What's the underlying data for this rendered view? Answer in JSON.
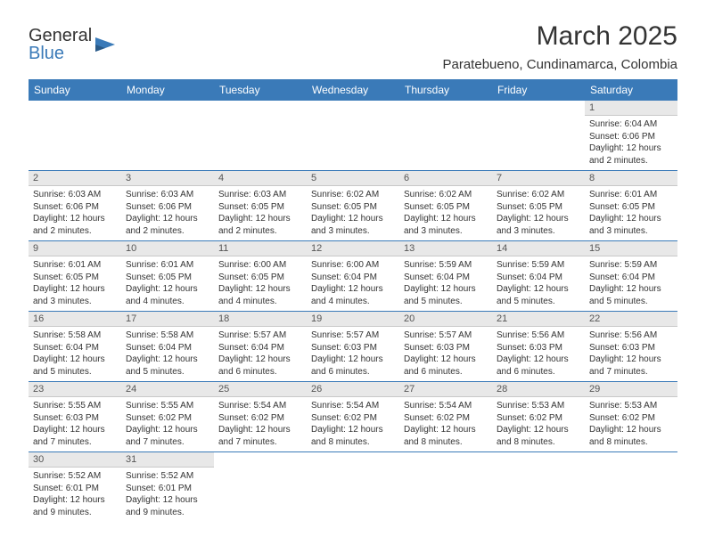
{
  "brand": {
    "part1": "General",
    "part2": "Blue"
  },
  "title": "March 2025",
  "location": "Paratebueno, Cundinamarca, Colombia",
  "colors": {
    "header_bg": "#3a7ab8",
    "header_text": "#ffffff",
    "daynum_bg": "#e8e8e8",
    "row_border": "#3a7ab8",
    "body_text": "#333333"
  },
  "weekdays": [
    "Sunday",
    "Monday",
    "Tuesday",
    "Wednesday",
    "Thursday",
    "Friday",
    "Saturday"
  ],
  "weeks": [
    [
      null,
      null,
      null,
      null,
      null,
      null,
      {
        "n": "1",
        "sr": "Sunrise: 6:04 AM",
        "ss": "Sunset: 6:06 PM",
        "dl": "Daylight: 12 hours and 2 minutes."
      }
    ],
    [
      {
        "n": "2",
        "sr": "Sunrise: 6:03 AM",
        "ss": "Sunset: 6:06 PM",
        "dl": "Daylight: 12 hours and 2 minutes."
      },
      {
        "n": "3",
        "sr": "Sunrise: 6:03 AM",
        "ss": "Sunset: 6:06 PM",
        "dl": "Daylight: 12 hours and 2 minutes."
      },
      {
        "n": "4",
        "sr": "Sunrise: 6:03 AM",
        "ss": "Sunset: 6:05 PM",
        "dl": "Daylight: 12 hours and 2 minutes."
      },
      {
        "n": "5",
        "sr": "Sunrise: 6:02 AM",
        "ss": "Sunset: 6:05 PM",
        "dl": "Daylight: 12 hours and 3 minutes."
      },
      {
        "n": "6",
        "sr": "Sunrise: 6:02 AM",
        "ss": "Sunset: 6:05 PM",
        "dl": "Daylight: 12 hours and 3 minutes."
      },
      {
        "n": "7",
        "sr": "Sunrise: 6:02 AM",
        "ss": "Sunset: 6:05 PM",
        "dl": "Daylight: 12 hours and 3 minutes."
      },
      {
        "n": "8",
        "sr": "Sunrise: 6:01 AM",
        "ss": "Sunset: 6:05 PM",
        "dl": "Daylight: 12 hours and 3 minutes."
      }
    ],
    [
      {
        "n": "9",
        "sr": "Sunrise: 6:01 AM",
        "ss": "Sunset: 6:05 PM",
        "dl": "Daylight: 12 hours and 3 minutes."
      },
      {
        "n": "10",
        "sr": "Sunrise: 6:01 AM",
        "ss": "Sunset: 6:05 PM",
        "dl": "Daylight: 12 hours and 4 minutes."
      },
      {
        "n": "11",
        "sr": "Sunrise: 6:00 AM",
        "ss": "Sunset: 6:05 PM",
        "dl": "Daylight: 12 hours and 4 minutes."
      },
      {
        "n": "12",
        "sr": "Sunrise: 6:00 AM",
        "ss": "Sunset: 6:04 PM",
        "dl": "Daylight: 12 hours and 4 minutes."
      },
      {
        "n": "13",
        "sr": "Sunrise: 5:59 AM",
        "ss": "Sunset: 6:04 PM",
        "dl": "Daylight: 12 hours and 5 minutes."
      },
      {
        "n": "14",
        "sr": "Sunrise: 5:59 AM",
        "ss": "Sunset: 6:04 PM",
        "dl": "Daylight: 12 hours and 5 minutes."
      },
      {
        "n": "15",
        "sr": "Sunrise: 5:59 AM",
        "ss": "Sunset: 6:04 PM",
        "dl": "Daylight: 12 hours and 5 minutes."
      }
    ],
    [
      {
        "n": "16",
        "sr": "Sunrise: 5:58 AM",
        "ss": "Sunset: 6:04 PM",
        "dl": "Daylight: 12 hours and 5 minutes."
      },
      {
        "n": "17",
        "sr": "Sunrise: 5:58 AM",
        "ss": "Sunset: 6:04 PM",
        "dl": "Daylight: 12 hours and 5 minutes."
      },
      {
        "n": "18",
        "sr": "Sunrise: 5:57 AM",
        "ss": "Sunset: 6:04 PM",
        "dl": "Daylight: 12 hours and 6 minutes."
      },
      {
        "n": "19",
        "sr": "Sunrise: 5:57 AM",
        "ss": "Sunset: 6:03 PM",
        "dl": "Daylight: 12 hours and 6 minutes."
      },
      {
        "n": "20",
        "sr": "Sunrise: 5:57 AM",
        "ss": "Sunset: 6:03 PM",
        "dl": "Daylight: 12 hours and 6 minutes."
      },
      {
        "n": "21",
        "sr": "Sunrise: 5:56 AM",
        "ss": "Sunset: 6:03 PM",
        "dl": "Daylight: 12 hours and 6 minutes."
      },
      {
        "n": "22",
        "sr": "Sunrise: 5:56 AM",
        "ss": "Sunset: 6:03 PM",
        "dl": "Daylight: 12 hours and 7 minutes."
      }
    ],
    [
      {
        "n": "23",
        "sr": "Sunrise: 5:55 AM",
        "ss": "Sunset: 6:03 PM",
        "dl": "Daylight: 12 hours and 7 minutes."
      },
      {
        "n": "24",
        "sr": "Sunrise: 5:55 AM",
        "ss": "Sunset: 6:02 PM",
        "dl": "Daylight: 12 hours and 7 minutes."
      },
      {
        "n": "25",
        "sr": "Sunrise: 5:54 AM",
        "ss": "Sunset: 6:02 PM",
        "dl": "Daylight: 12 hours and 7 minutes."
      },
      {
        "n": "26",
        "sr": "Sunrise: 5:54 AM",
        "ss": "Sunset: 6:02 PM",
        "dl": "Daylight: 12 hours and 8 minutes."
      },
      {
        "n": "27",
        "sr": "Sunrise: 5:54 AM",
        "ss": "Sunset: 6:02 PM",
        "dl": "Daylight: 12 hours and 8 minutes."
      },
      {
        "n": "28",
        "sr": "Sunrise: 5:53 AM",
        "ss": "Sunset: 6:02 PM",
        "dl": "Daylight: 12 hours and 8 minutes."
      },
      {
        "n": "29",
        "sr": "Sunrise: 5:53 AM",
        "ss": "Sunset: 6:02 PM",
        "dl": "Daylight: 12 hours and 8 minutes."
      }
    ],
    [
      {
        "n": "30",
        "sr": "Sunrise: 5:52 AM",
        "ss": "Sunset: 6:01 PM",
        "dl": "Daylight: 12 hours and 9 minutes."
      },
      {
        "n": "31",
        "sr": "Sunrise: 5:52 AM",
        "ss": "Sunset: 6:01 PM",
        "dl": "Daylight: 12 hours and 9 minutes."
      },
      null,
      null,
      null,
      null,
      null
    ]
  ]
}
